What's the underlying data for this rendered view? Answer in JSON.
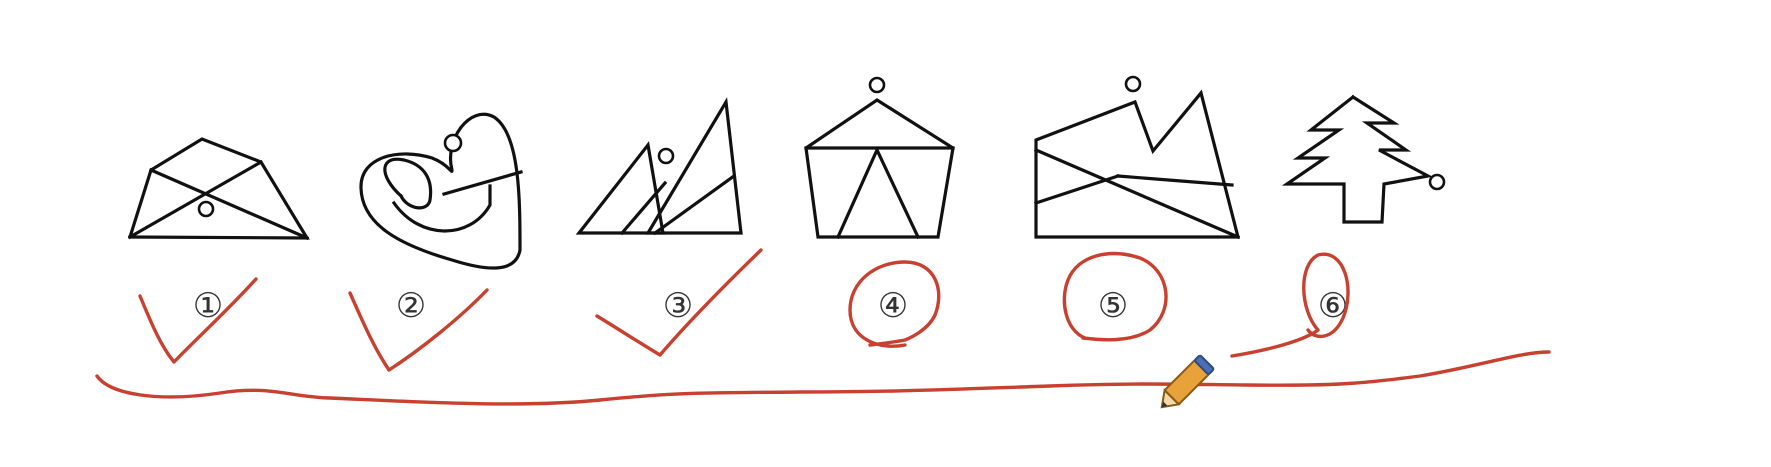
{
  "figures": [
    {
      "label": "①",
      "mark": "check"
    },
    {
      "label": "②",
      "mark": "check"
    },
    {
      "label": "③",
      "mark": "check"
    },
    {
      "label": "④",
      "mark": "circle"
    },
    {
      "label": "⑤",
      "mark": "circle"
    },
    {
      "label": "⑥",
      "mark": "circle"
    }
  ],
  "annotation": {
    "ink_color": "#c8402f",
    "tool": "pencil-icon"
  },
  "colors": {
    "line": "#111111",
    "background": "#ffffff",
    "pencil_body": "#e8a23a",
    "pencil_tip": "#4a6fb5"
  }
}
